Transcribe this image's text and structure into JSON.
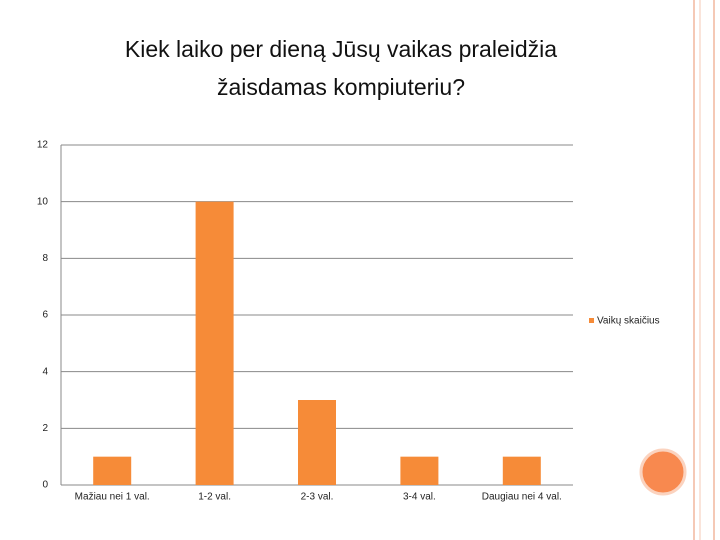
{
  "chart_data": {
    "type": "bar",
    "title": "Kiek laiko per dieną Jūsų vaikas praleidžia žaisdamas kompiuteriu?",
    "categories": [
      "Mažiau nei 1 val.",
      "1-2 val.",
      "2-3 val.",
      "3-4 val.",
      "Daugiau nei 4 val."
    ],
    "series": [
      {
        "name": "Vaikų skaičius",
        "color": "#f68b38",
        "values": [
          1,
          10,
          3,
          1,
          1
        ]
      }
    ],
    "ylim": [
      0,
      12
    ],
    "yticks": [
      0,
      2,
      4,
      6,
      8,
      10,
      12
    ],
    "grid": true,
    "legend": "right"
  }
}
